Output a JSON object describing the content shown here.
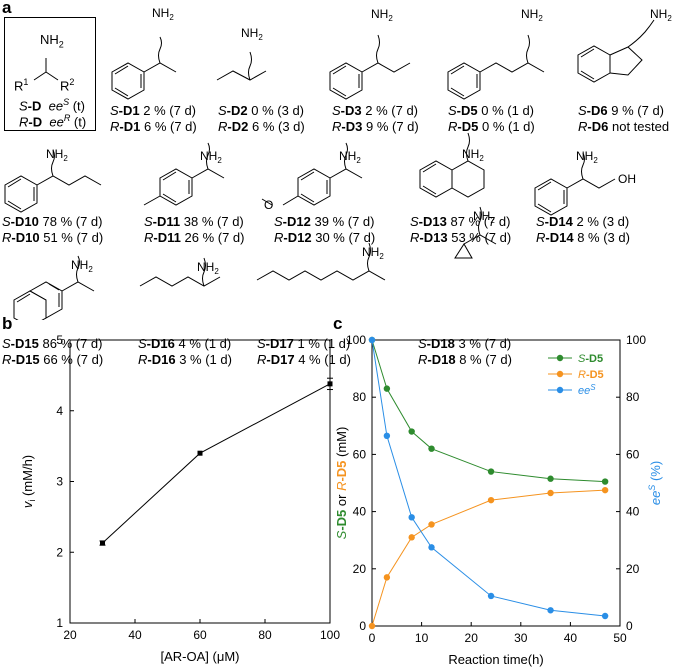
{
  "panels": {
    "a": "a",
    "b": "b",
    "c": "c"
  },
  "general": {
    "nh2": "NH",
    "nh2_sub": "2",
    "r1": "R",
    "r1_sup": "1",
    "r2": "R",
    "r2_sup": "2",
    "oh": "OH",
    "row_s_prefix": "S",
    "row_s_label": "-D",
    "row_s_text": "ee",
    "row_s_sup": "S",
    "row_s_t": " (t)",
    "row_r_prefix": "R",
    "row_r_label": "-D",
    "row_r_text": "ee",
    "row_r_sup": "R",
    "row_r_t": " (t)"
  },
  "compounds": [
    {
      "id": "D1",
      "s": "2 % (7 d)",
      "r": "6 % (7 d)"
    },
    {
      "id": "D2",
      "s": "0 % (3 d)",
      "r": "6 % (3 d)"
    },
    {
      "id": "D3",
      "s": "2 % (7 d)",
      "r": "9 % (7 d)"
    },
    {
      "id": "D5",
      "s": "0 % (1 d)",
      "r": "0 % (1 d)"
    },
    {
      "id": "D6",
      "s": "9 % (7 d)",
      "r": "not tested"
    },
    {
      "id": "D10",
      "s": "78 % (7 d)",
      "r": "51 % (7 d)"
    },
    {
      "id": "D11",
      "s": "38 % (7 d)",
      "r": "26 % (7 d)"
    },
    {
      "id": "D12",
      "s": "39 % (7 d)",
      "r": "30 % (7 d)"
    },
    {
      "id": "D13",
      "s": "87 % (7 d)",
      "r": "53 % (7 d)"
    },
    {
      "id": "D14",
      "s": "2 % (3 d)",
      "r": "8 % (3 d)"
    },
    {
      "id": "D15",
      "s": "86 % (7 d)",
      "r": "66 % (7 d)"
    },
    {
      "id": "D16",
      "s": "4 % (1 d)",
      "r": "3 % (1 d)"
    },
    {
      "id": "D17",
      "s": "1 % (1 d)",
      "r": "4 % (1 d)"
    },
    {
      "id": "D18",
      "s": "3 % (7 d)",
      "r": "8 % (7 d)"
    }
  ],
  "chart_data": [
    {
      "type": "line",
      "panel": "b",
      "x": [
        30,
        60,
        100
      ],
      "y": [
        2.13,
        3.4,
        4.38
      ],
      "y_err": [
        0.03,
        0.0,
        0.08
      ],
      "xlabel_pre": "[AR-OA] (",
      "xlabel_mu": "μ",
      "xlabel_post": "M)",
      "ylabel_v": "v",
      "ylabel_sub": "i",
      "ylabel_unit": " (mM/h)",
      "xlim": [
        20,
        100
      ],
      "ylim": [
        1,
        5
      ],
      "xticks": [
        "20",
        "40",
        "60",
        "80",
        "100"
      ],
      "yticks": [
        "1",
        "2",
        "3",
        "4",
        "5"
      ],
      "grid": false,
      "color": "#000000"
    },
    {
      "type": "line",
      "panel": "c",
      "x": [
        0,
        3,
        8,
        12,
        24,
        36,
        47
      ],
      "xlabel": "Reaction time(h)",
      "ylabel_left_s": "S",
      "ylabel_left_s_rest": "-D5",
      "ylabel_left_or": " or ",
      "ylabel_left_r": "R",
      "ylabel_left_r_rest": "-D5",
      "ylabel_left_unit": " (mM)",
      "ylabel_right_ee": "ee",
      "ylabel_right_sup": "S",
      "ylabel_right_unit": " (%)",
      "xlim": [
        0,
        50
      ],
      "ylim_left": [
        0,
        100
      ],
      "ylim_right": [
        0,
        100
      ],
      "xticks": [
        "0",
        "10",
        "20",
        "30",
        "40",
        "50"
      ],
      "yticks_left": [
        "0",
        "20",
        "40",
        "60",
        "80",
        "100"
      ],
      "yticks_right": [
        "0",
        "20",
        "40",
        "60",
        "80",
        "100"
      ],
      "grid": false,
      "legend": "top-right",
      "series": [
        {
          "name_italic": "S",
          "name_rest": "-D5",
          "values": [
            100,
            83,
            68,
            62,
            54,
            51.5,
            50.5
          ],
          "color": "#2e8b2e",
          "axis": "left"
        },
        {
          "name_italic": "R",
          "name_rest": "-D5",
          "values": [
            0,
            17,
            31,
            35.5,
            44,
            46.5,
            47.5
          ],
          "color": "#f5931f",
          "axis": "left"
        },
        {
          "name_italic": "ee",
          "name_sup": "S",
          "values": [
            100,
            66.5,
            38,
            27.5,
            10.5,
            5.5,
            3.5
          ],
          "color": "#2a8ee6",
          "axis": "right"
        }
      ]
    }
  ]
}
